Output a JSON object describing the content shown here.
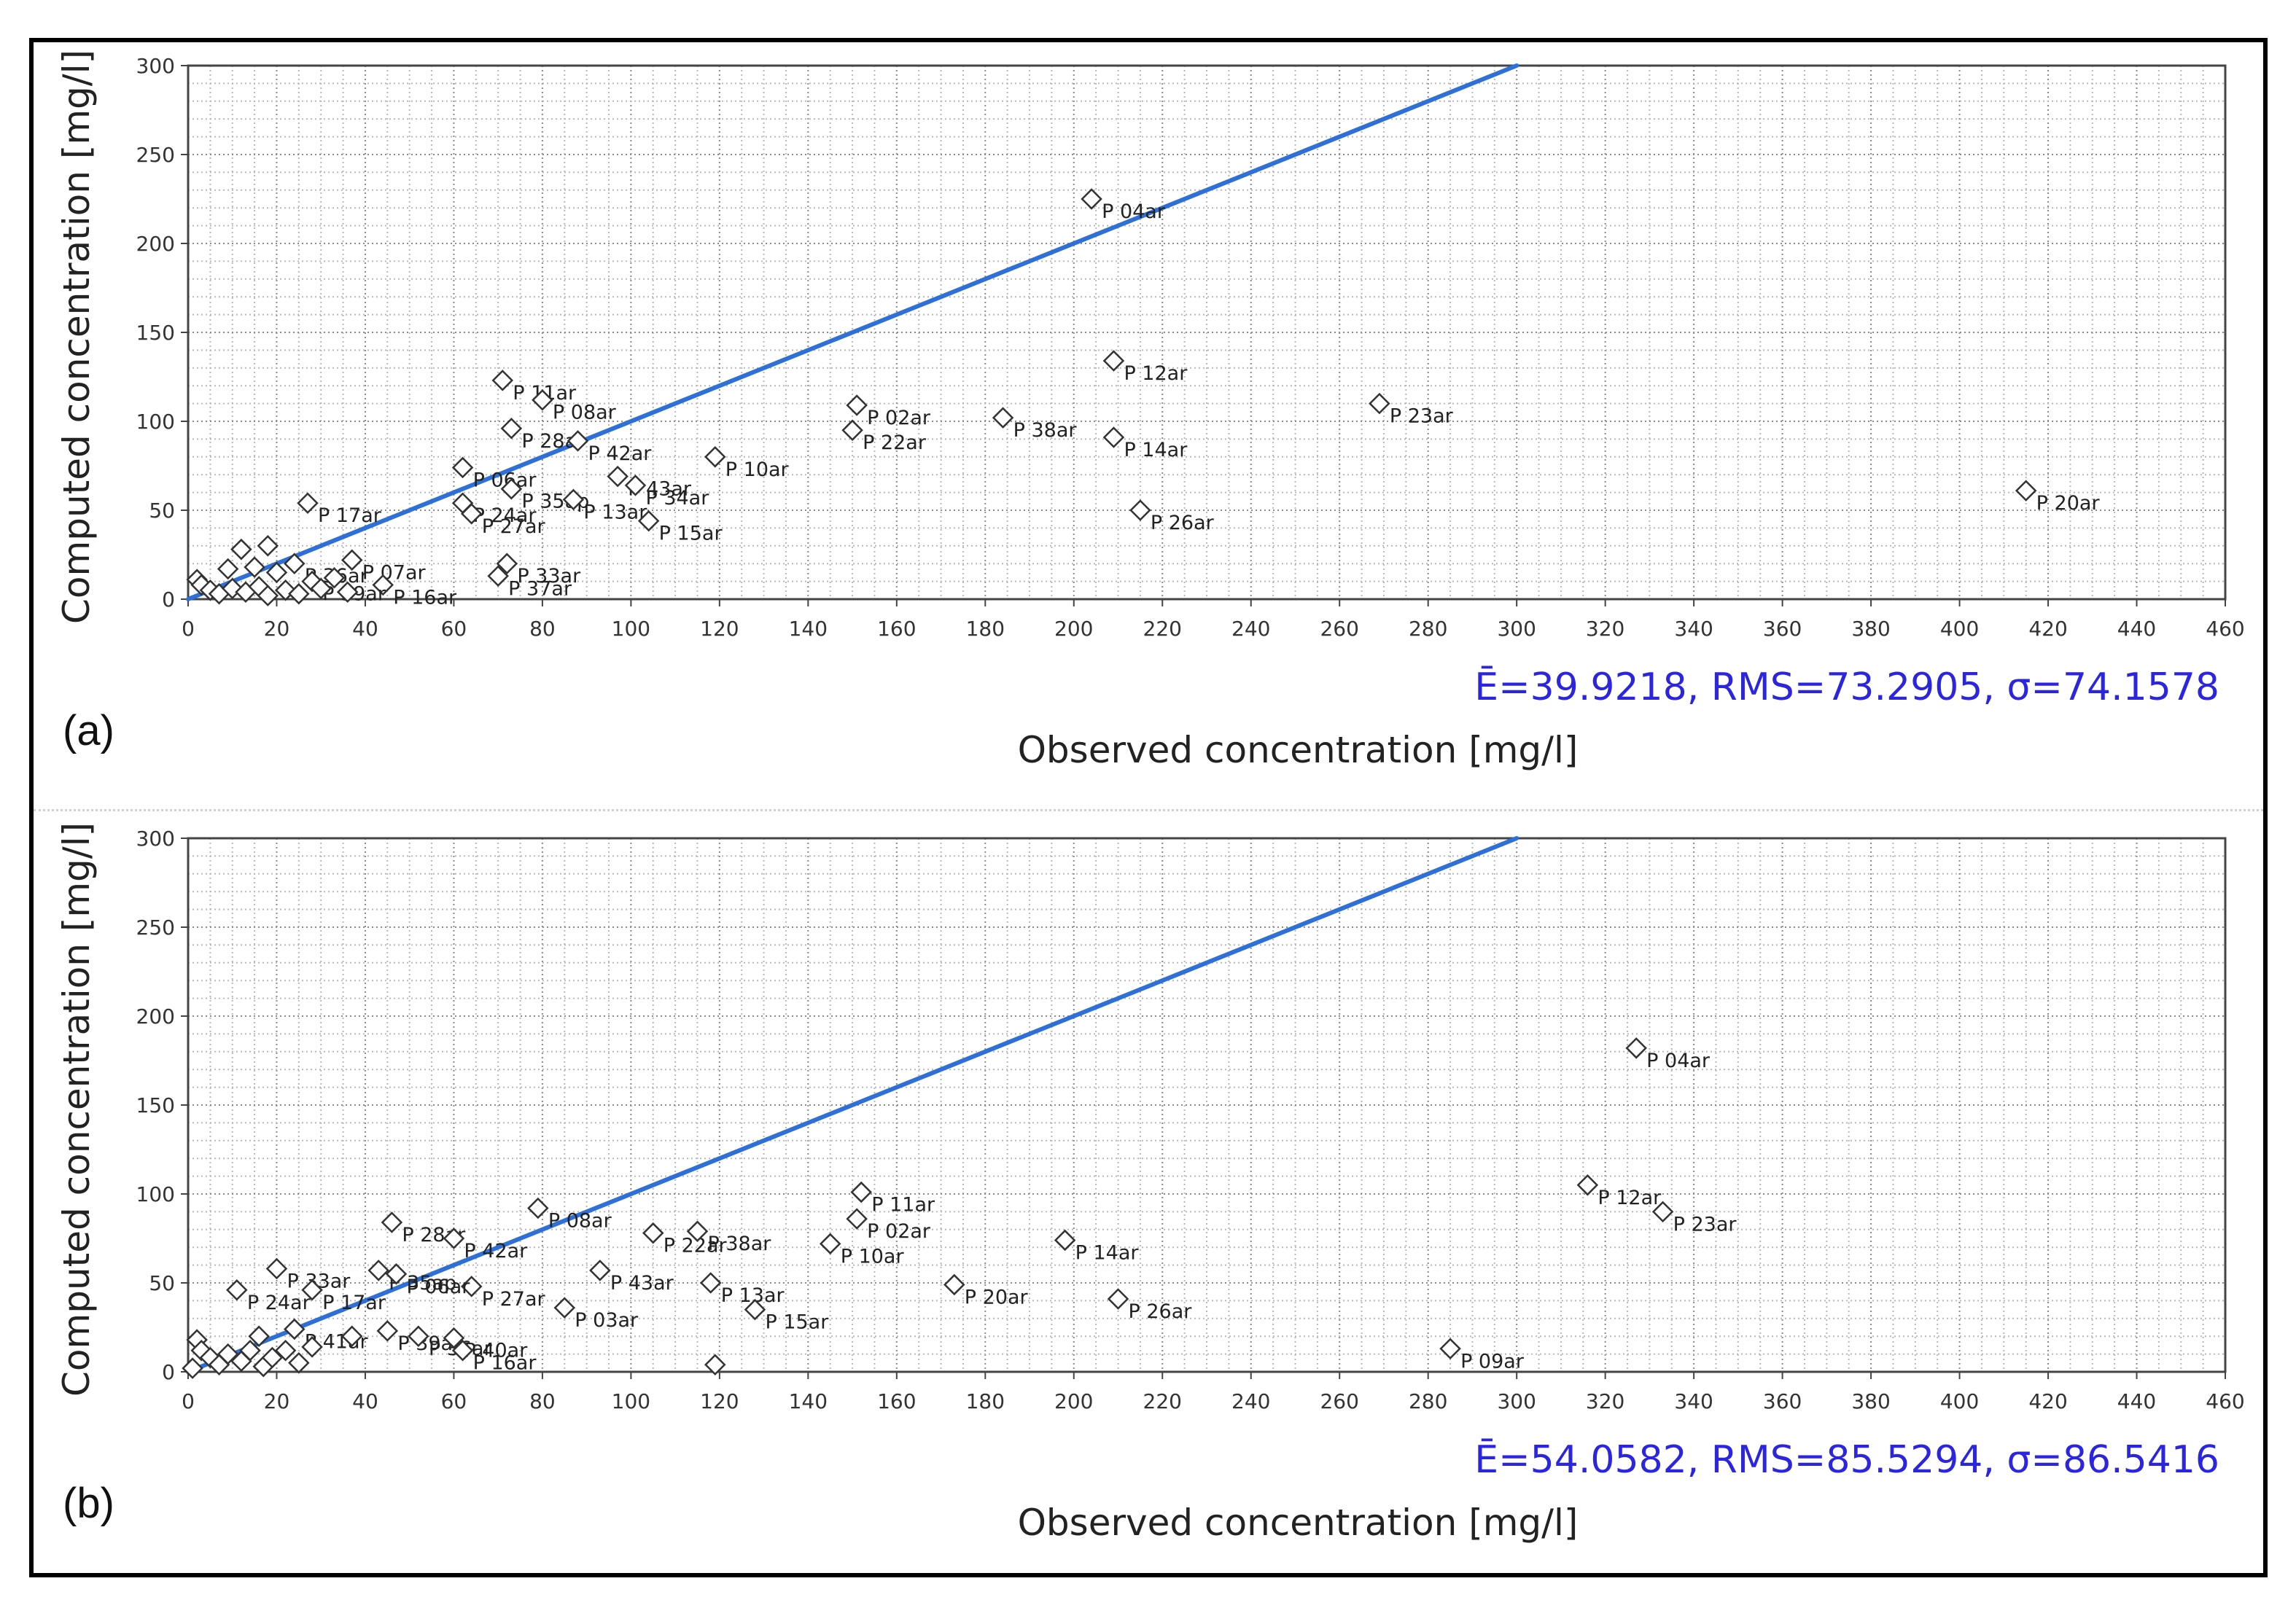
{
  "chart_data": [
    {
      "type": "scatter",
      "panel_label": "(a)",
      "xlabel": "Observed concentration [mg/l]",
      "ylabel": "Computed concentration [mg/l]",
      "xlim": [
        0,
        460
      ],
      "ylim": [
        0,
        300
      ],
      "x_ticks": [
        0,
        20,
        40,
        60,
        80,
        100,
        120,
        140,
        160,
        180,
        200,
        220,
        240,
        260,
        280,
        300,
        320,
        340,
        360,
        380,
        400,
        420,
        440,
        460
      ],
      "y_ticks": [
        0,
        50,
        100,
        150,
        200,
        250,
        300
      ],
      "grid": true,
      "reference_line": {
        "x": [
          0,
          300
        ],
        "y": [
          0,
          300
        ],
        "color": "#2e6fd8"
      },
      "stats": "Ē=39.9218, RMS=73.2905, σ=74.1578",
      "points": [
        {
          "x": 204,
          "y": 225,
          "label": "P 04ar"
        },
        {
          "x": 209,
          "y": 134,
          "label": "P 12ar"
        },
        {
          "x": 269,
          "y": 110,
          "label": "P 23ar"
        },
        {
          "x": 415,
          "y": 61,
          "label": "P 20ar"
        },
        {
          "x": 151,
          "y": 109,
          "label": "P 02ar"
        },
        {
          "x": 150,
          "y": 95,
          "label": "P 22ar"
        },
        {
          "x": 184,
          "y": 102,
          "label": "P 38ar"
        },
        {
          "x": 209,
          "y": 91,
          "label": "P 14ar"
        },
        {
          "x": 215,
          "y": 50,
          "label": "P 26ar"
        },
        {
          "x": 119,
          "y": 80,
          "label": "P 10ar"
        },
        {
          "x": 71,
          "y": 123,
          "label": "P 11ar"
        },
        {
          "x": 80,
          "y": 112,
          "label": "P 08ar"
        },
        {
          "x": 73,
          "y": 96,
          "label": "P 28ar"
        },
        {
          "x": 88,
          "y": 89,
          "label": "P 42ar"
        },
        {
          "x": 62,
          "y": 74,
          "label": "P 06ar"
        },
        {
          "x": 73,
          "y": 62,
          "label": "P 35ap"
        },
        {
          "x": 62,
          "y": 54,
          "label": "P 24ar"
        },
        {
          "x": 64,
          "y": 48,
          "label": "P 27ar"
        },
        {
          "x": 87,
          "y": 56,
          "label": "P 13ar"
        },
        {
          "x": 97,
          "y": 69,
          "label": "P 43ar"
        },
        {
          "x": 101,
          "y": 64,
          "label": "P 34ar"
        },
        {
          "x": 104,
          "y": 44,
          "label": "P 15ar"
        },
        {
          "x": 27,
          "y": 54,
          "label": "P 17ar"
        },
        {
          "x": 72,
          "y": 20,
          "label": "P 33ar"
        },
        {
          "x": 70,
          "y": 13,
          "label": "P 37ar"
        },
        {
          "x": 37,
          "y": 22,
          "label": "P 07ar"
        },
        {
          "x": 44,
          "y": 8,
          "label": "P 16ar"
        },
        {
          "x": 24,
          "y": 20,
          "label": "P 36ar"
        },
        {
          "x": 28,
          "y": 10,
          "label": "P 39ar"
        },
        {
          "x": 12,
          "y": 28,
          "label": ""
        },
        {
          "x": 18,
          "y": 30,
          "label": ""
        },
        {
          "x": 9,
          "y": 17,
          "label": ""
        },
        {
          "x": 15,
          "y": 18,
          "label": ""
        },
        {
          "x": 20,
          "y": 15,
          "label": ""
        },
        {
          "x": 2,
          "y": 11,
          "label": ""
        },
        {
          "x": 3,
          "y": 8,
          "label": ""
        },
        {
          "x": 5,
          "y": 5,
          "label": ""
        },
        {
          "x": 7,
          "y": 3,
          "label": ""
        },
        {
          "x": 10,
          "y": 6,
          "label": ""
        },
        {
          "x": 13,
          "y": 4,
          "label": ""
        },
        {
          "x": 16,
          "y": 7,
          "label": ""
        },
        {
          "x": 18,
          "y": 2,
          "label": ""
        },
        {
          "x": 22,
          "y": 5,
          "label": ""
        },
        {
          "x": 25,
          "y": 3,
          "label": ""
        },
        {
          "x": 30,
          "y": 6,
          "label": ""
        },
        {
          "x": 33,
          "y": 12,
          "label": ""
        },
        {
          "x": 36,
          "y": 4,
          "label": ""
        }
      ]
    },
    {
      "type": "scatter",
      "panel_label": "(b)",
      "xlabel": "Observed concentration [mg/l]",
      "ylabel": "Computed concentration [mg/l]",
      "xlim": [
        0,
        460
      ],
      "ylim": [
        0,
        300
      ],
      "x_ticks": [
        0,
        20,
        40,
        60,
        80,
        100,
        120,
        140,
        160,
        180,
        200,
        220,
        240,
        260,
        280,
        300,
        320,
        340,
        360,
        380,
        400,
        420,
        440,
        460
      ],
      "y_ticks": [
        0,
        50,
        100,
        150,
        200,
        250,
        300
      ],
      "grid": true,
      "reference_line": {
        "x": [
          0,
          300
        ],
        "y": [
          0,
          300
        ],
        "color": "#2e6fd8"
      },
      "stats": "Ē=54.0582, RMS=85.5294, σ=86.5416",
      "points": [
        {
          "x": 327,
          "y": 182,
          "label": "P 04ar"
        },
        {
          "x": 316,
          "y": 105,
          "label": "P 12ar"
        },
        {
          "x": 333,
          "y": 90,
          "label": "P 23ar"
        },
        {
          "x": 285,
          "y": 13,
          "label": "P 09ar"
        },
        {
          "x": 152,
          "y": 101,
          "label": "P 11ar"
        },
        {
          "x": 151,
          "y": 86,
          "label": "P 02ar"
        },
        {
          "x": 145,
          "y": 72,
          "label": "P 10ar"
        },
        {
          "x": 198,
          "y": 74,
          "label": "P 14ar"
        },
        {
          "x": 173,
          "y": 49,
          "label": "P 20ar"
        },
        {
          "x": 210,
          "y": 41,
          "label": "P 26ar"
        },
        {
          "x": 79,
          "y": 92,
          "label": "P 08ar"
        },
        {
          "x": 46,
          "y": 84,
          "label": "P 28ar"
        },
        {
          "x": 60,
          "y": 75,
          "label": "P 42ar"
        },
        {
          "x": 105,
          "y": 78,
          "label": "P 22ar"
        },
        {
          "x": 115,
          "y": 79,
          "label": "P 38ar"
        },
        {
          "x": 93,
          "y": 57,
          "label": "P 43ar"
        },
        {
          "x": 118,
          "y": 50,
          "label": "P 13ar"
        },
        {
          "x": 128,
          "y": 35,
          "label": "P 15ar"
        },
        {
          "x": 85,
          "y": 36,
          "label": "P 03ar"
        },
        {
          "x": 64,
          "y": 48,
          "label": "P 27ar"
        },
        {
          "x": 20,
          "y": 58,
          "label": "P 33ar"
        },
        {
          "x": 11,
          "y": 46,
          "label": "P 24ar"
        },
        {
          "x": 43,
          "y": 57,
          "label": "P 35ap"
        },
        {
          "x": 28,
          "y": 46,
          "label": "P 17ar"
        },
        {
          "x": 47,
          "y": 55,
          "label": "P 06ar"
        },
        {
          "x": 24,
          "y": 24,
          "label": "P 41ar"
        },
        {
          "x": 45,
          "y": 23,
          "label": "P 39ar"
        },
        {
          "x": 52,
          "y": 20,
          "label": "P 36ar"
        },
        {
          "x": 60,
          "y": 19,
          "label": "P 40ar"
        },
        {
          "x": 62,
          "y": 12,
          "label": "P 16ar"
        },
        {
          "x": 37,
          "y": 20,
          "label": ""
        },
        {
          "x": 119,
          "y": 4,
          "label": ""
        },
        {
          "x": 16,
          "y": 20,
          "label": ""
        },
        {
          "x": 2,
          "y": 18,
          "label": ""
        },
        {
          "x": 3,
          "y": 12,
          "label": ""
        },
        {
          "x": 5,
          "y": 8,
          "label": ""
        },
        {
          "x": 7,
          "y": 4,
          "label": ""
        },
        {
          "x": 9,
          "y": 10,
          "label": ""
        },
        {
          "x": 12,
          "y": 6,
          "label": ""
        },
        {
          "x": 14,
          "y": 12,
          "label": ""
        },
        {
          "x": 17,
          "y": 3,
          "label": ""
        },
        {
          "x": 19,
          "y": 8,
          "label": ""
        },
        {
          "x": 22,
          "y": 12,
          "label": ""
        },
        {
          "x": 25,
          "y": 5,
          "label": ""
        },
        {
          "x": 28,
          "y": 14,
          "label": ""
        },
        {
          "x": 1,
          "y": 2,
          "label": ""
        }
      ]
    }
  ]
}
